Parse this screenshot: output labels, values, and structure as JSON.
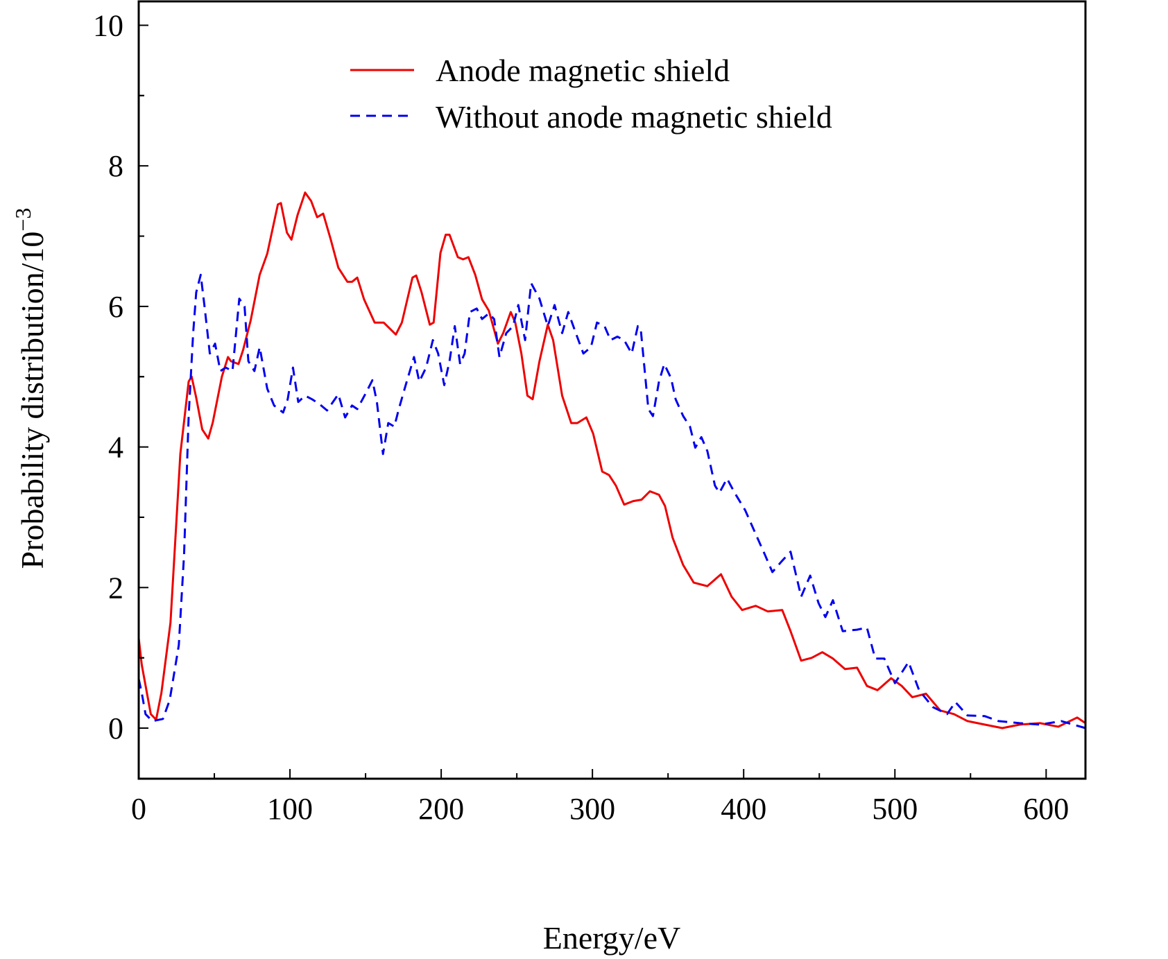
{
  "chart_data": {
    "type": "line",
    "title": "",
    "xlabel": "Energy/eV",
    "ylabel": "Probability distribution/10",
    "ylabel_exponent": "−3",
    "xlim": [
      0,
      626
    ],
    "ylim": [
      -0.72,
      10.34
    ],
    "xticks": [
      0,
      100,
      200,
      300,
      400,
      500,
      600
    ],
    "yticks": [
      0,
      2,
      4,
      6,
      8,
      10
    ],
    "grid": false,
    "legend_position": "top-right",
    "series": [
      {
        "name": "Anode magnetic shield",
        "color": "#ee0000",
        "style": "solid",
        "x": [
          0,
          2,
          8,
          11.5,
          15,
          21,
          27.5,
          33,
          35,
          38,
          42,
          46,
          49,
          55,
          59,
          61,
          66,
          69,
          74,
          80,
          85,
          92,
          94,
          98,
          101,
          105,
          110,
          114,
          118,
          122,
          127,
          132,
          138,
          141,
          144.5,
          149,
          156,
          162,
          170,
          174,
          181,
          183.5,
          187,
          192.5,
          195,
          199.5,
          203,
          205.5,
          211,
          214.5,
          218,
          222.5,
          227,
          231.5,
          237.5,
          241,
          246,
          249,
          253,
          257,
          260.5,
          265,
          270.5,
          274,
          280,
          286,
          290,
          296,
          300.5,
          306.5,
          311,
          315.5,
          321,
          327,
          332.5,
          338,
          344,
          348,
          353,
          360,
          367,
          376,
          385,
          392,
          399,
          408,
          416,
          425.5,
          431,
          438,
          445,
          452,
          459,
          467,
          475,
          481.5,
          488.5,
          497.5,
          504.5,
          511.5,
          520.5,
          530,
          539,
          548,
          559.5,
          571,
          582.5,
          596,
          608,
          620.5,
          626
        ],
        "y": [
          1.28,
          0.9,
          0.2,
          0.12,
          0.5,
          1.5,
          3.9,
          4.93,
          5.0,
          4.7,
          4.25,
          4.12,
          4.35,
          5.0,
          5.28,
          5.22,
          5.18,
          5.38,
          5.8,
          6.45,
          6.75,
          7.45,
          7.47,
          7.05,
          6.95,
          7.3,
          7.62,
          7.5,
          7.27,
          7.32,
          6.95,
          6.55,
          6.35,
          6.35,
          6.41,
          6.1,
          5.77,
          5.77,
          5.6,
          5.77,
          6.41,
          6.44,
          6.2,
          5.74,
          5.77,
          6.76,
          7.02,
          7.02,
          6.7,
          6.67,
          6.7,
          6.45,
          6.1,
          5.94,
          5.47,
          5.62,
          5.92,
          5.77,
          5.33,
          4.73,
          4.68,
          5.22,
          5.74,
          5.52,
          4.73,
          4.34,
          4.34,
          4.42,
          4.19,
          3.65,
          3.6,
          3.45,
          3.18,
          3.23,
          3.25,
          3.37,
          3.32,
          3.16,
          2.71,
          2.32,
          2.07,
          2.02,
          2.19,
          1.87,
          1.68,
          1.74,
          1.66,
          1.68,
          1.38,
          0.96,
          1.0,
          1.08,
          0.99,
          0.84,
          0.86,
          0.6,
          0.54,
          0.71,
          0.6,
          0.44,
          0.49,
          0.25,
          0.2,
          0.1,
          0.05,
          0.0,
          0.05,
          0.07,
          0.02,
          0.15,
          0.07
        ]
      },
      {
        "name": "Without anode magnetic shield",
        "color": "#0000ee",
        "style": "dashed",
        "x": [
          0,
          2,
          4.5,
          9,
          16,
          20.5,
          26.5,
          30,
          33,
          36,
          38,
          41,
          43.5,
          47,
          50.5,
          54,
          57.5,
          62,
          66.5,
          70,
          72.5,
          76.5,
          80,
          85,
          89.5,
          95.5,
          98.5,
          102,
          105.5,
          110,
          114.5,
          119,
          124.5,
          132,
          136.5,
          141,
          144.5,
          150.5,
          154.5,
          157.5,
          161.5,
          165,
          169,
          172,
          176.5,
          182,
          185.5,
          190,
          194.5,
          198,
          202,
          205.5,
          209,
          212.5,
          215.5,
          219,
          223.5,
          227,
          231.5,
          235,
          238.5,
          243,
          247.5,
          251,
          255.5,
          259.5,
          265,
          270.5,
          275,
          280,
          284,
          289,
          294,
          299,
          303,
          308,
          312,
          316.5,
          321,
          326,
          330,
          332,
          337,
          340,
          344,
          347.5,
          352,
          355,
          360,
          364.5,
          368,
          372,
          376,
          381,
          384,
          389,
          394,
          401,
          408,
          414,
          419,
          425,
          431,
          438,
          444,
          449.5,
          454,
          459,
          465.5,
          475,
          481.5,
          487,
          493,
          500,
          509,
          516,
          525,
          534.5,
          540,
          548,
          559.5,
          568.5,
          582.5,
          596,
          610,
          626
        ],
        "y": [
          0.7,
          0.5,
          0.2,
          0.1,
          0.13,
          0.4,
          1.18,
          2.47,
          4.44,
          5.62,
          6.2,
          6.45,
          6.0,
          5.33,
          5.47,
          5.08,
          5.13,
          5.08,
          6.11,
          6.0,
          5.22,
          5.08,
          5.42,
          4.83,
          4.59,
          4.49,
          4.68,
          5.13,
          4.64,
          4.73,
          4.68,
          4.62,
          4.52,
          4.75,
          4.42,
          4.59,
          4.54,
          4.78,
          4.95,
          4.64,
          3.9,
          4.34,
          4.29,
          4.54,
          4.88,
          5.28,
          4.93,
          5.13,
          5.52,
          5.33,
          4.88,
          5.22,
          5.72,
          5.18,
          5.33,
          5.92,
          5.97,
          5.82,
          5.9,
          5.82,
          5.28,
          5.62,
          5.72,
          6.02,
          5.52,
          6.33,
          6.11,
          5.72,
          6.02,
          5.62,
          5.92,
          5.62,
          5.33,
          5.42,
          5.77,
          5.72,
          5.52,
          5.57,
          5.52,
          5.33,
          5.72,
          5.67,
          4.54,
          4.44,
          4.93,
          5.18,
          4.98,
          4.68,
          4.44,
          4.29,
          3.99,
          4.14,
          3.94,
          3.45,
          3.35,
          3.55,
          3.35,
          3.1,
          2.76,
          2.47,
          2.22,
          2.37,
          2.51,
          1.87,
          2.17,
          1.78,
          1.58,
          1.82,
          1.38,
          1.4,
          1.43,
          0.99,
          0.99,
          0.64,
          0.94,
          0.54,
          0.3,
          0.2,
          0.37,
          0.18,
          0.17,
          0.1,
          0.07,
          0.05,
          0.1,
          0.0
        ]
      }
    ]
  }
}
